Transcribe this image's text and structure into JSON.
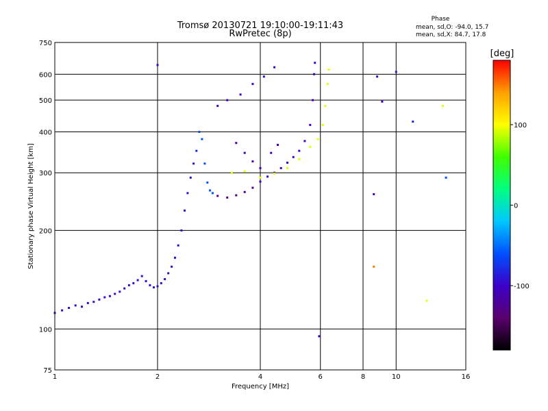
{
  "title_line1": "Tromsø 20130721 19:10:00-19:11:43",
  "title_line2": "RwPretec (8p)",
  "phase_stats": {
    "header": "Phase",
    "line1": "mean, sd,O: -94.0, 15.7",
    "line2": "mean, sd,X: 84.7, 17.8"
  },
  "colorbar": {
    "label": "[deg]",
    "ticks": [
      {
        "value": 100,
        "label": "100"
      },
      {
        "value": 0,
        "label": "0"
      },
      {
        "value": -100,
        "label": "-100"
      }
    ],
    "range": [
      -180,
      180
    ],
    "stops": [
      "#000000",
      "#5a006e",
      "#3c00c8",
      "#0050ff",
      "#00c8ff",
      "#00ff80",
      "#40ff00",
      "#ffff00",
      "#ffa000",
      "#ff0000"
    ]
  },
  "chart_data": {
    "type": "scatter",
    "xlabel": "Frequency [MHz]",
    "ylabel": "Stationary phase Virtual Height [km]",
    "xscale": "log",
    "yscale": "log",
    "xlim": [
      1,
      16
    ],
    "ylim": [
      75,
      750
    ],
    "x_ticks": [
      {
        "value": 1,
        "label": "1"
      },
      {
        "value": 2,
        "label": "2"
      },
      {
        "value": 4,
        "label": "4"
      },
      {
        "value": 6,
        "label": "6"
      },
      {
        "value": 8,
        "label": "8"
      },
      {
        "value": 10,
        "label": "10"
      },
      {
        "value": 16,
        "label": "16"
      }
    ],
    "y_ticks": [
      {
        "value": 75,
        "label": "75"
      },
      {
        "value": 100,
        "label": "100"
      },
      {
        "value": 200,
        "label": "200"
      },
      {
        "value": 300,
        "label": "300"
      },
      {
        "value": 400,
        "label": "400"
      },
      {
        "value": 500,
        "label": "500"
      },
      {
        "value": 600,
        "label": "600"
      },
      {
        "value": 750,
        "label": "750"
      }
    ],
    "grid_x": [
      2,
      4,
      6,
      8,
      10
    ],
    "grid_y": [
      100,
      200,
      300,
      400,
      500,
      600
    ],
    "points": [
      {
        "x": 1.0,
        "y": 112,
        "phase": -95
      },
      {
        "x": 1.05,
        "y": 114,
        "phase": -95
      },
      {
        "x": 1.1,
        "y": 116,
        "phase": -95
      },
      {
        "x": 1.15,
        "y": 118,
        "phase": -95
      },
      {
        "x": 1.2,
        "y": 117,
        "phase": -95
      },
      {
        "x": 1.25,
        "y": 120,
        "phase": -95
      },
      {
        "x": 1.3,
        "y": 121,
        "phase": -95
      },
      {
        "x": 1.35,
        "y": 123,
        "phase": -95
      },
      {
        "x": 1.4,
        "y": 125,
        "phase": -95
      },
      {
        "x": 1.45,
        "y": 126,
        "phase": -95
      },
      {
        "x": 1.5,
        "y": 128,
        "phase": -95
      },
      {
        "x": 1.55,
        "y": 130,
        "phase": -95
      },
      {
        "x": 1.6,
        "y": 133,
        "phase": -95
      },
      {
        "x": 1.65,
        "y": 136,
        "phase": -95
      },
      {
        "x": 1.7,
        "y": 138,
        "phase": -95
      },
      {
        "x": 1.75,
        "y": 141,
        "phase": -95
      },
      {
        "x": 1.8,
        "y": 145,
        "phase": -95
      },
      {
        "x": 1.85,
        "y": 140,
        "phase": -95
      },
      {
        "x": 1.9,
        "y": 136,
        "phase": -95
      },
      {
        "x": 1.95,
        "y": 134,
        "phase": -95
      },
      {
        "x": 2.0,
        "y": 135,
        "phase": -95
      },
      {
        "x": 2.05,
        "y": 138,
        "phase": -95
      },
      {
        "x": 2.1,
        "y": 142,
        "phase": -95
      },
      {
        "x": 2.15,
        "y": 148,
        "phase": -95
      },
      {
        "x": 2.2,
        "y": 155,
        "phase": -95
      },
      {
        "x": 2.25,
        "y": 165,
        "phase": -95
      },
      {
        "x": 2.3,
        "y": 180,
        "phase": -95
      },
      {
        "x": 2.35,
        "y": 200,
        "phase": -95
      },
      {
        "x": 2.4,
        "y": 230,
        "phase": -95
      },
      {
        "x": 2.45,
        "y": 260,
        "phase": -95
      },
      {
        "x": 2.5,
        "y": 290,
        "phase": -95
      },
      {
        "x": 2.55,
        "y": 320,
        "phase": -95
      },
      {
        "x": 2.6,
        "y": 350,
        "phase": -80
      },
      {
        "x": 2.65,
        "y": 400,
        "phase": -60
      },
      {
        "x": 2.7,
        "y": 380,
        "phase": -60
      },
      {
        "x": 2.75,
        "y": 320,
        "phase": -60
      },
      {
        "x": 2.8,
        "y": 280,
        "phase": -60
      },
      {
        "x": 2.85,
        "y": 265,
        "phase": -60
      },
      {
        "x": 2.9,
        "y": 260,
        "phase": -60
      },
      {
        "x": 3.0,
        "y": 255,
        "phase": -130
      },
      {
        "x": 3.2,
        "y": 252,
        "phase": -130
      },
      {
        "x": 3.4,
        "y": 256,
        "phase": -130
      },
      {
        "x": 3.6,
        "y": 262,
        "phase": -130
      },
      {
        "x": 3.8,
        "y": 270,
        "phase": -130
      },
      {
        "x": 4.0,
        "y": 282,
        "phase": -100
      },
      {
        "x": 4.2,
        "y": 292,
        "phase": -100
      },
      {
        "x": 4.4,
        "y": 300,
        "phase": -100
      },
      {
        "x": 4.6,
        "y": 310,
        "phase": -100
      },
      {
        "x": 4.8,
        "y": 322,
        "phase": -100
      },
      {
        "x": 5.0,
        "y": 335,
        "phase": -100
      },
      {
        "x": 5.2,
        "y": 350,
        "phase": -100
      },
      {
        "x": 5.4,
        "y": 375,
        "phase": -100
      },
      {
        "x": 5.6,
        "y": 420,
        "phase": -100
      },
      {
        "x": 5.7,
        "y": 500,
        "phase": -100
      },
      {
        "x": 5.75,
        "y": 600,
        "phase": -100
      },
      {
        "x": 5.78,
        "y": 650,
        "phase": -100
      },
      {
        "x": 3.3,
        "y": 300,
        "phase": 95
      },
      {
        "x": 3.6,
        "y": 303,
        "phase": 95
      },
      {
        "x": 4.0,
        "y": 290,
        "phase": 95
      },
      {
        "x": 4.4,
        "y": 298,
        "phase": 95
      },
      {
        "x": 4.8,
        "y": 310,
        "phase": 95
      },
      {
        "x": 5.2,
        "y": 330,
        "phase": 95
      },
      {
        "x": 5.6,
        "y": 360,
        "phase": 95
      },
      {
        "x": 5.9,
        "y": 380,
        "phase": 95
      },
      {
        "x": 6.1,
        "y": 420,
        "phase": 95
      },
      {
        "x": 6.2,
        "y": 480,
        "phase": 95
      },
      {
        "x": 6.3,
        "y": 560,
        "phase": 95
      },
      {
        "x": 6.35,
        "y": 620,
        "phase": 95
      },
      {
        "x": 3.0,
        "y": 480,
        "phase": -100
      },
      {
        "x": 3.2,
        "y": 500,
        "phase": -100
      },
      {
        "x": 3.5,
        "y": 520,
        "phase": -100
      },
      {
        "x": 3.8,
        "y": 560,
        "phase": -100
      },
      {
        "x": 4.1,
        "y": 590,
        "phase": -100
      },
      {
        "x": 4.4,
        "y": 630,
        "phase": -100
      },
      {
        "x": 3.4,
        "y": 370,
        "phase": -110
      },
      {
        "x": 3.6,
        "y": 345,
        "phase": -110
      },
      {
        "x": 3.8,
        "y": 325,
        "phase": -110
      },
      {
        "x": 4.0,
        "y": 310,
        "phase": -110
      },
      {
        "x": 4.3,
        "y": 345,
        "phase": -110
      },
      {
        "x": 4.5,
        "y": 365,
        "phase": -110
      },
      {
        "x": 2.0,
        "y": 640,
        "phase": -100
      },
      {
        "x": 5.95,
        "y": 95,
        "phase": -100
      },
      {
        "x": 8.8,
        "y": 590,
        "phase": -100
      },
      {
        "x": 9.1,
        "y": 495,
        "phase": -100
      },
      {
        "x": 10.0,
        "y": 610,
        "phase": -90
      },
      {
        "x": 11.2,
        "y": 430,
        "phase": -80
      },
      {
        "x": 8.6,
        "y": 258,
        "phase": -100
      },
      {
        "x": 12.3,
        "y": 122,
        "phase": 95
      },
      {
        "x": 13.7,
        "y": 480,
        "phase": 95
      },
      {
        "x": 14.0,
        "y": 290,
        "phase": -60
      },
      {
        "x": 8.6,
        "y": 155,
        "phase": 150
      }
    ]
  }
}
